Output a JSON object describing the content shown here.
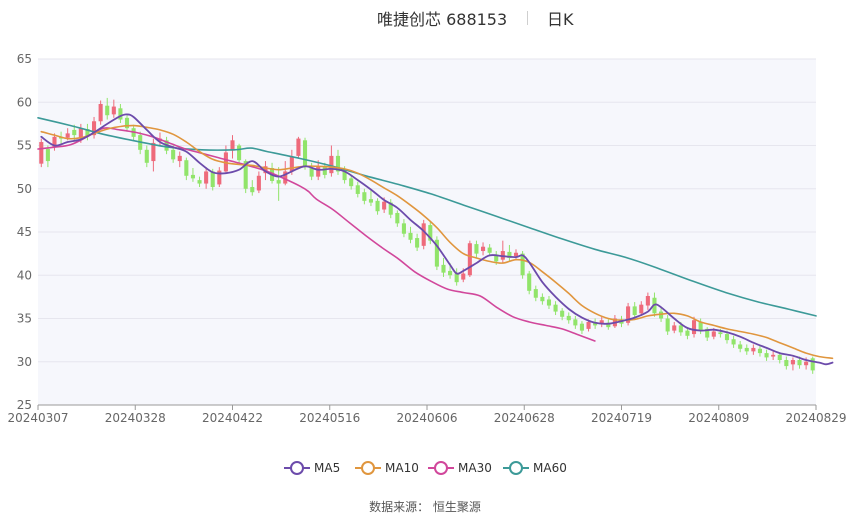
{
  "header": {
    "title": "唯捷创芯 688153",
    "period": "日K"
  },
  "source_text": "数据来源： 恒生聚源",
  "colors": {
    "up": "#ee6a7b",
    "down": "#91e46a",
    "ma5": "#6c4bab",
    "ma10": "#e0963e",
    "ma30": "#d1479b",
    "ma60": "#3c9a98",
    "grid": "#e6e6ee",
    "plot_bg": "#f6f7fc"
  },
  "chart_data": {
    "type": "candlestick",
    "title": "唯捷创芯 688153",
    "ylim": [
      25,
      65
    ],
    "yticks": [
      25,
      30,
      35,
      40,
      45,
      50,
      55,
      60,
      65
    ],
    "x_tick_labels": [
      "20240307",
      "20240328",
      "20240422",
      "20240516",
      "20240606",
      "20240628",
      "20240719",
      "20240809",
      "20240829"
    ],
    "legend": [
      "MA5",
      "MA10",
      "MA30",
      "MA60"
    ],
    "legend_position": "bottom",
    "grid": true,
    "candles": [
      [
        52.9,
        55.4,
        52.5,
        55.8
      ],
      [
        54.6,
        53.2,
        52.5,
        55.0
      ],
      [
        54.8,
        56.0,
        54.4,
        56.4
      ],
      [
        56.0,
        55.8,
        55.2,
        56.6
      ],
      [
        55.9,
        56.4,
        55.6,
        57.0
      ],
      [
        56.8,
        56.2,
        55.6,
        57.4
      ],
      [
        55.8,
        57.0,
        55.3,
        57.5
      ],
      [
        56.9,
        56.1,
        55.6,
        57.5
      ],
      [
        56.2,
        57.8,
        55.8,
        58.3
      ],
      [
        57.8,
        59.8,
        57.4,
        60.2
      ],
      [
        59.6,
        58.5,
        58.0,
        60.5
      ],
      [
        58.6,
        59.5,
        58.2,
        60.3
      ],
      [
        59.3,
        58.0,
        57.6,
        59.8
      ],
      [
        58.2,
        57.0,
        56.6,
        58.5
      ],
      [
        57.0,
        56.0,
        55.5,
        57.4
      ],
      [
        56.2,
        54.5,
        54.0,
        56.6
      ],
      [
        54.5,
        53.0,
        52.5,
        55.0
      ],
      [
        53.2,
        55.3,
        52.0,
        55.8
      ],
      [
        55.5,
        55.8,
        55.0,
        56.5
      ],
      [
        55.6,
        54.4,
        54.0,
        56.0
      ],
      [
        54.5,
        53.4,
        53.0,
        55.0
      ],
      [
        53.2,
        53.8,
        52.5,
        54.3
      ],
      [
        53.3,
        51.5,
        51.0,
        53.6
      ],
      [
        51.6,
        51.2,
        50.8,
        52.4
      ],
      [
        51.0,
        50.6,
        50.2,
        51.4
      ],
      [
        50.6,
        52.0,
        50.0,
        52.5
      ],
      [
        52.0,
        50.2,
        49.8,
        52.3
      ],
      [
        50.5,
        52.1,
        50.2,
        52.5
      ],
      [
        52.0,
        54.2,
        51.8,
        55.0
      ],
      [
        54.4,
        55.6,
        53.5,
        56.2
      ],
      [
        55.0,
        53.3,
        53.0,
        55.2
      ],
      [
        53.2,
        50.0,
        49.5,
        53.4
      ],
      [
        50.2,
        49.6,
        49.2,
        51.0
      ],
      [
        49.8,
        51.5,
        49.5,
        52.0
      ],
      [
        51.8,
        52.6,
        51.0,
        53.2
      ],
      [
        52.4,
        50.9,
        50.6,
        53.0
      ],
      [
        51.0,
        50.6,
        48.6,
        52.5
      ],
      [
        50.6,
        52.0,
        50.4,
        53.2
      ],
      [
        52.0,
        53.7,
        51.6,
        54.5
      ],
      [
        53.8,
        55.8,
        53.5,
        56.0
      ],
      [
        55.6,
        52.5,
        52.2,
        55.9
      ],
      [
        52.4,
        51.4,
        51.0,
        53.0
      ],
      [
        51.4,
        52.6,
        51.0,
        53.3
      ],
      [
        52.6,
        51.6,
        51.2,
        53.0
      ],
      [
        51.8,
        53.8,
        51.4,
        55.0
      ],
      [
        53.8,
        52.0,
        51.6,
        54.5
      ],
      [
        52.2,
        51.0,
        50.6,
        52.6
      ],
      [
        51.2,
        50.3,
        49.9,
        51.6
      ],
      [
        50.4,
        49.4,
        49.0,
        50.8
      ],
      [
        49.6,
        48.6,
        48.2,
        50.0
      ],
      [
        48.8,
        48.4,
        48.0,
        49.8
      ],
      [
        48.6,
        47.4,
        47.0,
        48.9
      ],
      [
        47.6,
        48.5,
        47.2,
        49.0
      ],
      [
        48.4,
        47.0,
        46.6,
        48.8
      ],
      [
        47.2,
        46.0,
        45.6,
        47.5
      ],
      [
        46.0,
        44.8,
        44.4,
        46.5
      ],
      [
        44.9,
        44.1,
        43.7,
        45.6
      ],
      [
        44.3,
        43.2,
        42.8,
        44.8
      ],
      [
        43.4,
        46.0,
        43.0,
        46.4
      ],
      [
        45.8,
        44.0,
        43.6,
        46.3
      ],
      [
        44.1,
        41.0,
        40.6,
        44.5
      ],
      [
        41.2,
        40.3,
        39.8,
        42.0
      ],
      [
        40.5,
        40.0,
        39.6,
        41.4
      ],
      [
        40.2,
        39.2,
        38.8,
        40.8
      ],
      [
        39.5,
        40.2,
        39.2,
        40.8
      ],
      [
        40.0,
        43.7,
        39.8,
        44.0
      ],
      [
        43.6,
        42.5,
        42.0,
        44.0
      ],
      [
        42.8,
        43.3,
        42.3,
        43.8
      ],
      [
        43.2,
        42.6,
        42.2,
        43.6
      ],
      [
        42.4,
        41.6,
        41.2,
        42.8
      ],
      [
        41.8,
        42.8,
        41.4,
        44.0
      ],
      [
        42.7,
        42.0,
        41.6,
        43.5
      ],
      [
        42.2,
        42.6,
        41.8,
        43.0
      ],
      [
        42.5,
        40.0,
        39.6,
        42.8
      ],
      [
        40.2,
        38.2,
        37.8,
        40.5
      ],
      [
        38.4,
        37.4,
        37.0,
        38.8
      ],
      [
        37.5,
        37.0,
        36.6,
        37.9
      ],
      [
        37.2,
        36.5,
        36.1,
        37.6
      ],
      [
        36.6,
        35.8,
        35.4,
        37.0
      ],
      [
        35.9,
        35.2,
        34.8,
        36.2
      ],
      [
        35.3,
        34.8,
        34.4,
        35.7
      ],
      [
        34.9,
        34.2,
        33.8,
        35.3
      ],
      [
        34.4,
        33.6,
        33.2,
        34.7
      ],
      [
        33.8,
        34.6,
        33.5,
        34.9
      ],
      [
        34.6,
        34.2,
        33.8,
        35.0
      ],
      [
        34.4,
        34.8,
        34.0,
        35.2
      ],
      [
        34.5,
        34.0,
        33.7,
        34.9
      ],
      [
        34.1,
        35.0,
        33.9,
        35.4
      ],
      [
        34.9,
        34.4,
        34.0,
        35.3
      ],
      [
        34.5,
        36.4,
        34.2,
        36.8
      ],
      [
        36.4,
        35.4,
        35.0,
        36.9
      ],
      [
        35.6,
        36.6,
        35.3,
        37.0
      ],
      [
        36.5,
        37.6,
        36.0,
        38.0
      ],
      [
        37.4,
        35.6,
        35.2,
        38.0
      ],
      [
        35.8,
        35.0,
        34.6,
        36.2
      ],
      [
        35.0,
        33.5,
        33.1,
        35.4
      ],
      [
        33.6,
        34.2,
        33.3,
        34.6
      ],
      [
        34.2,
        33.4,
        33.0,
        34.6
      ],
      [
        33.6,
        33.0,
        32.6,
        34.0
      ],
      [
        33.2,
        34.8,
        32.8,
        35.2
      ],
      [
        34.6,
        33.6,
        33.2,
        35.0
      ],
      [
        33.8,
        32.8,
        32.4,
        34.0
      ],
      [
        32.9,
        33.5,
        32.6,
        33.9
      ],
      [
        33.4,
        33.2,
        32.8,
        33.8
      ],
      [
        33.2,
        32.5,
        32.1,
        33.6
      ],
      [
        32.6,
        32.0,
        31.6,
        33.0
      ],
      [
        32.0,
        31.5,
        31.1,
        32.4
      ],
      [
        31.6,
        31.2,
        30.8,
        32.0
      ],
      [
        31.2,
        31.6,
        30.8,
        32.0
      ],
      [
        31.5,
        31.0,
        30.6,
        31.9
      ],
      [
        31.0,
        30.5,
        30.1,
        31.4
      ],
      [
        30.6,
        30.8,
        30.2,
        31.2
      ],
      [
        30.8,
        30.2,
        29.8,
        31.0
      ],
      [
        30.2,
        29.5,
        29.1,
        30.6
      ],
      [
        29.7,
        30.2,
        29.0,
        30.5
      ],
      [
        30.2,
        29.6,
        29.2,
        30.6
      ],
      [
        29.6,
        30.0,
        29.1,
        30.5
      ],
      [
        30.4,
        29.0,
        28.6,
        30.6
      ]
    ],
    "ma5": [
      [
        0,
        56.0
      ],
      [
        2,
        55.0
      ],
      [
        4,
        55.4
      ],
      [
        6,
        55.7
      ],
      [
        8,
        56.5
      ],
      [
        10,
        57.5
      ],
      [
        12,
        58.4
      ],
      [
        13,
        58.6
      ],
      [
        14,
        58.3
      ],
      [
        16,
        56.8
      ],
      [
        18,
        55.4
      ],
      [
        20,
        54.8
      ],
      [
        22,
        54.3
      ],
      [
        24,
        53.0
      ],
      [
        26,
        51.9
      ],
      [
        28,
        51.8
      ],
      [
        30,
        52.2
      ],
      [
        32,
        53.2
      ],
      [
        34,
        52.0
      ],
      [
        36,
        51.4
      ],
      [
        38,
        52.0
      ],
      [
        40,
        52.6
      ],
      [
        42,
        52.2
      ],
      [
        44,
        52.3
      ],
      [
        46,
        52.0
      ],
      [
        48,
        51.0
      ],
      [
        50,
        49.9
      ],
      [
        52,
        48.7
      ],
      [
        54,
        47.8
      ],
      [
        56,
        46.4
      ],
      [
        58,
        45.1
      ],
      [
        60,
        43.4
      ],
      [
        62,
        41.2
      ],
      [
        63,
        40.2
      ],
      [
        64,
        40.5
      ],
      [
        66,
        41.4
      ],
      [
        68,
        42.3
      ],
      [
        70,
        42.2
      ],
      [
        72,
        42.1
      ],
      [
        73,
        42.3
      ],
      [
        74,
        41.5
      ],
      [
        76,
        39.2
      ],
      [
        78,
        37.5
      ],
      [
        80,
        36.1
      ],
      [
        82,
        35.1
      ],
      [
        84,
        34.5
      ],
      [
        86,
        34.4
      ],
      [
        88,
        34.7
      ],
      [
        90,
        35.1
      ],
      [
        92,
        35.8
      ],
      [
        93,
        36.6
      ],
      [
        94,
        36.3
      ],
      [
        96,
        35.0
      ],
      [
        98,
        33.9
      ],
      [
        100,
        33.6
      ],
      [
        102,
        33.7
      ],
      [
        104,
        33.4
      ],
      [
        106,
        32.9
      ],
      [
        108,
        32.2
      ],
      [
        110,
        31.6
      ],
      [
        112,
        31.0
      ],
      [
        114,
        30.7
      ],
      [
        116,
        30.2
      ],
      [
        118,
        29.9
      ],
      [
        119,
        29.7
      ],
      [
        120,
        29.9
      ]
    ],
    "ma10": [
      [
        0,
        56.6
      ],
      [
        2,
        56.2
      ],
      [
        4,
        55.8
      ],
      [
        6,
        55.9
      ],
      [
        8,
        56.4
      ],
      [
        10,
        56.9
      ],
      [
        12,
        57.2
      ],
      [
        14,
        57.3
      ],
      [
        16,
        57.1
      ],
      [
        18,
        56.8
      ],
      [
        20,
        56.3
      ],
      [
        22,
        55.4
      ],
      [
        24,
        54.3
      ],
      [
        26,
        53.4
      ],
      [
        28,
        53.0
      ],
      [
        30,
        52.8
      ],
      [
        32,
        52.7
      ],
      [
        34,
        52.4
      ],
      [
        36,
        52.2
      ],
      [
        38,
        52.4
      ],
      [
        40,
        52.6
      ],
      [
        42,
        52.6
      ],
      [
        44,
        52.5
      ],
      [
        46,
        52.3
      ],
      [
        48,
        51.8
      ],
      [
        50,
        51.0
      ],
      [
        52,
        50.1
      ],
      [
        54,
        49.2
      ],
      [
        56,
        48.1
      ],
      [
        58,
        46.9
      ],
      [
        60,
        45.5
      ],
      [
        62,
        43.8
      ],
      [
        64,
        42.5
      ],
      [
        66,
        42.0
      ],
      [
        68,
        41.6
      ],
      [
        70,
        41.4
      ],
      [
        72,
        41.8
      ],
      [
        74,
        41.5
      ],
      [
        76,
        40.4
      ],
      [
        78,
        39.2
      ],
      [
        80,
        37.9
      ],
      [
        82,
        36.5
      ],
      [
        84,
        35.6
      ],
      [
        86,
        35.0
      ],
      [
        88,
        34.8
      ],
      [
        90,
        34.9
      ],
      [
        92,
        35.3
      ],
      [
        94,
        35.5
      ],
      [
        96,
        35.6
      ],
      [
        98,
        35.3
      ],
      [
        100,
        34.6
      ],
      [
        102,
        34.2
      ],
      [
        104,
        33.8
      ],
      [
        106,
        33.5
      ],
      [
        108,
        33.2
      ],
      [
        110,
        32.8
      ],
      [
        112,
        32.2
      ],
      [
        114,
        31.6
      ],
      [
        116,
        31.0
      ],
      [
        118,
        30.6
      ],
      [
        120,
        30.4
      ]
    ],
    "ma30": [
      [
        0,
        54.6
      ],
      [
        4,
        54.8
      ],
      [
        8,
        55.1
      ],
      [
        12,
        56.0
      ],
      [
        16,
        57.0
      ],
      [
        20,
        56.8
      ],
      [
        24,
        56.5
      ],
      [
        28,
        56.0
      ],
      [
        32,
        55.3
      ],
      [
        36,
        54.6
      ],
      [
        40,
        54.1
      ],
      [
        44,
        53.6
      ],
      [
        48,
        53.1
      ],
      [
        52,
        52.6
      ],
      [
        56,
        52.0
      ],
      [
        60,
        51.2
      ],
      [
        64,
        50.3
      ],
      [
        66,
        49.7
      ],
      [
        68,
        48.8
      ],
      [
        72,
        47.6
      ],
      [
        76,
        46.1
      ],
      [
        80,
        44.6
      ],
      [
        84,
        43.2
      ],
      [
        88,
        41.9
      ],
      [
        92,
        40.4
      ],
      [
        96,
        39.3
      ],
      [
        100,
        38.4
      ],
      [
        104,
        38.0
      ],
      [
        108,
        37.6
      ],
      [
        112,
        36.3
      ],
      [
        116,
        35.2
      ],
      [
        120,
        34.6
      ],
      [
        124,
        34.2
      ],
      [
        128,
        33.8
      ],
      [
        132,
        33.1
      ],
      [
        136,
        32.4
      ]
    ],
    "ma60": [
      [
        0,
        58.2
      ],
      [
        8,
        57.3
      ],
      [
        16,
        56.3
      ],
      [
        24,
        55.5
      ],
      [
        32,
        54.8
      ],
      [
        40,
        54.5
      ],
      [
        48,
        54.5
      ],
      [
        52,
        54.7
      ],
      [
        56,
        54.3
      ],
      [
        64,
        53.5
      ],
      [
        72,
        52.6
      ],
      [
        80,
        51.5
      ],
      [
        88,
        50.5
      ],
      [
        96,
        49.4
      ],
      [
        104,
        48.1
      ],
      [
        112,
        46.8
      ],
      [
        120,
        45.5
      ],
      [
        128,
        44.2
      ],
      [
        136,
        43.0
      ],
      [
        144,
        42.0
      ],
      [
        152,
        40.7
      ],
      [
        160,
        39.3
      ],
      [
        168,
        38.0
      ],
      [
        176,
        36.9
      ],
      [
        184,
        36.0
      ],
      [
        190,
        35.3
      ]
    ]
  }
}
